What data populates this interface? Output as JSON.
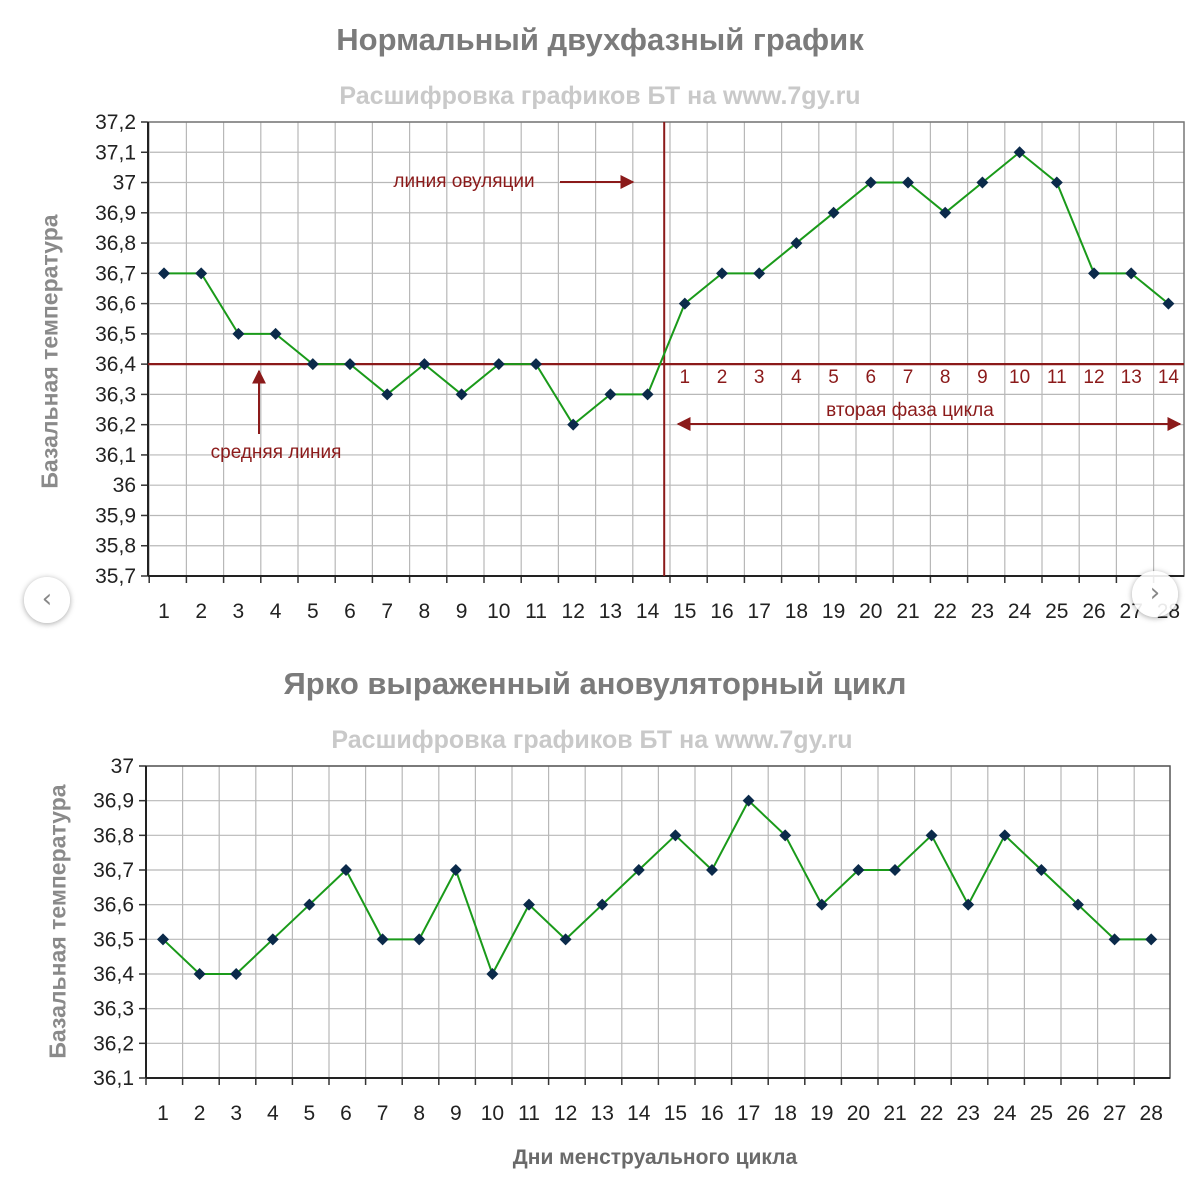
{
  "colors": {
    "line": "#1a9a1a",
    "marker": "#0b2a4a",
    "annotation": "#8b1a1a",
    "grid": "#b8b8b8"
  },
  "nav": {
    "prev_icon": "‹",
    "next_icon": "›"
  },
  "chart_data": [
    {
      "type": "line",
      "title": "Нормальный двухфазный график",
      "subtitle": "Расшифровка графиков БТ на www.7gy.ru",
      "ylabel": "Базальная температура",
      "xlabel": "",
      "ylim": [
        35.7,
        37.2
      ],
      "ytick_step": 0.1,
      "yticks": [
        "35,7",
        "35,8",
        "35,9",
        "36",
        "36,1",
        "36,2",
        "36,3",
        "36,4",
        "36,5",
        "36,6",
        "36,7",
        "36,8",
        "36,9",
        "37",
        "37,1",
        "37,2"
      ],
      "categories": [
        "1",
        "2",
        "3",
        "4",
        "5",
        "6",
        "7",
        "8",
        "9",
        "10",
        "11",
        "12",
        "13",
        "14",
        "15",
        "16",
        "17",
        "18",
        "19",
        "20",
        "21",
        "22",
        "23",
        "24",
        "25",
        "26",
        "27",
        "28"
      ],
      "values": [
        36.7,
        36.7,
        36.5,
        36.5,
        36.4,
        36.4,
        36.3,
        36.4,
        36.3,
        36.4,
        36.4,
        36.2,
        36.3,
        36.3,
        36.6,
        36.7,
        36.7,
        36.8,
        36.9,
        37.0,
        37.0,
        36.9,
        37.0,
        37.1,
        37.0,
        36.7,
        36.7,
        36.6
      ],
      "annotations": {
        "middle_line_value": 36.4,
        "middle_line_label": "средняя линия",
        "ovulation_line_label": "линия овуляции",
        "ovulation_after_day": 14,
        "phase_days": [
          "1",
          "2",
          "3",
          "4",
          "5",
          "6",
          "7",
          "8",
          "9",
          "10",
          "11",
          "12",
          "13",
          "14"
        ],
        "phase_label": "вторая фаза цикла"
      }
    },
    {
      "type": "line",
      "title": "Ярко выраженный ановуляторный цикл",
      "subtitle": "Расшифровка графиков БТ на www.7gy.ru",
      "ylabel": "Базальная температура",
      "xlabel": "Дни менструального цикла",
      "ylim": [
        36.1,
        37.0
      ],
      "ytick_step": 0.1,
      "yticks": [
        "36,1",
        "36,2",
        "36,3",
        "36,4",
        "36,5",
        "36,6",
        "36,7",
        "36,8",
        "36,9",
        "37"
      ],
      "categories": [
        "1",
        "2",
        "3",
        "4",
        "5",
        "6",
        "7",
        "8",
        "9",
        "10",
        "11",
        "12",
        "13",
        "14",
        "15",
        "16",
        "17",
        "18",
        "19",
        "20",
        "21",
        "22",
        "23",
        "24",
        "25",
        "26",
        "27",
        "28"
      ],
      "values": [
        36.5,
        36.4,
        36.4,
        36.5,
        36.6,
        36.7,
        36.5,
        36.5,
        36.7,
        36.4,
        36.6,
        36.5,
        36.6,
        36.7,
        36.8,
        36.7,
        36.9,
        36.8,
        36.6,
        36.7,
        36.7,
        36.8,
        36.6,
        36.8,
        36.7,
        36.6,
        36.5,
        36.5
      ]
    }
  ]
}
